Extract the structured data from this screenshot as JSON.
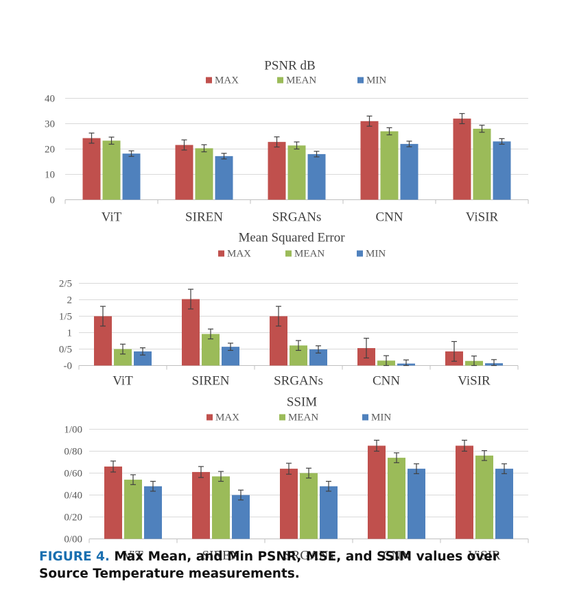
{
  "colors": {
    "MAX": "#c0504d",
    "MEAN": "#9bbb59",
    "MIN": "#4f81bd",
    "errorbar": "#404040",
    "grid": "#d9d9d9",
    "axis": "#bfbfbf",
    "caption_label": "#1a6fb0"
  },
  "chart_data": [
    {
      "type": "bar",
      "title": "PSNR dB",
      "categories": [
        "ViT",
        "SIREN",
        "SRGANs",
        "CNN",
        "ViSIR"
      ],
      "series": [
        {
          "name": "MAX",
          "values": [
            24.3,
            21.6,
            22.8,
            31.0,
            32.0
          ],
          "errors": [
            2.0,
            2.0,
            2.0,
            2.0,
            2.0
          ]
        },
        {
          "name": "MEAN",
          "values": [
            23.3,
            20.3,
            21.4,
            27.0,
            28.0
          ],
          "errors": [
            1.4,
            1.4,
            1.4,
            1.4,
            1.4
          ]
        },
        {
          "name": "MIN",
          "values": [
            18.2,
            17.2,
            18.0,
            22.0,
            23.0
          ],
          "errors": [
            1.1,
            1.1,
            1.1,
            1.1,
            1.1
          ]
        }
      ],
      "ylim": [
        0,
        40
      ],
      "yticks": [
        0,
        10,
        20,
        30,
        40
      ],
      "ytick_labels": [
        "0",
        "10",
        "20",
        "30",
        "40"
      ],
      "grid": true,
      "legend": "top"
    },
    {
      "type": "bar",
      "title": "Mean Squared Error",
      "categories": [
        "ViT",
        "SIREN",
        "SRGANs",
        "CNN",
        "ViSIR"
      ],
      "series": [
        {
          "name": "MAX",
          "values": [
            1.5,
            2.02,
            1.5,
            0.53,
            0.43
          ],
          "errors": [
            0.3,
            0.3,
            0.3,
            0.3,
            0.3
          ]
        },
        {
          "name": "MEAN",
          "values": [
            0.5,
            0.96,
            0.61,
            0.15,
            0.14
          ],
          "errors": [
            0.15,
            0.15,
            0.15,
            0.15,
            0.15
          ]
        },
        {
          "name": "MIN",
          "values": [
            0.43,
            0.57,
            0.49,
            0.06,
            0.07
          ],
          "errors": [
            0.11,
            0.11,
            0.11,
            0.11,
            0.11
          ]
        }
      ],
      "ylim": [
        0,
        2.5
      ],
      "yticks": [
        0,
        0.5,
        1,
        1.5,
        2,
        2.5
      ],
      "ytick_labels": [
        "-0",
        "0/5",
        "1",
        "1/5",
        "2",
        "2/5"
      ],
      "grid": true,
      "legend": "top"
    },
    {
      "type": "bar",
      "title": "SSIM",
      "categories": [
        "ViT",
        "SIREN",
        "SRGANs",
        "CNN",
        "ViSIR"
      ],
      "series": [
        {
          "name": "MAX",
          "values": [
            0.66,
            0.61,
            0.64,
            0.85,
            0.85
          ],
          "errors": [
            0.05,
            0.05,
            0.05,
            0.05,
            0.05
          ]
        },
        {
          "name": "MEAN",
          "values": [
            0.54,
            0.57,
            0.6,
            0.74,
            0.76
          ],
          "errors": [
            0.045,
            0.045,
            0.045,
            0.045,
            0.045
          ]
        },
        {
          "name": "MIN",
          "values": [
            0.48,
            0.4,
            0.48,
            0.64,
            0.64
          ],
          "errors": [
            0.045,
            0.045,
            0.045,
            0.045,
            0.045
          ]
        }
      ],
      "ylim": [
        0,
        1
      ],
      "yticks": [
        0,
        0.2,
        0.4,
        0.6,
        0.8,
        1
      ],
      "ytick_labels": [
        "0/00",
        "0/20",
        "0/40",
        "0/60",
        "0/80",
        "1/00"
      ],
      "grid": true,
      "legend": "top"
    }
  ],
  "caption": {
    "label": "FIGURE 4.",
    "text": " Max Mean, and Min PSNR, MSE, and SSIM values over Source Temperature measurements."
  }
}
